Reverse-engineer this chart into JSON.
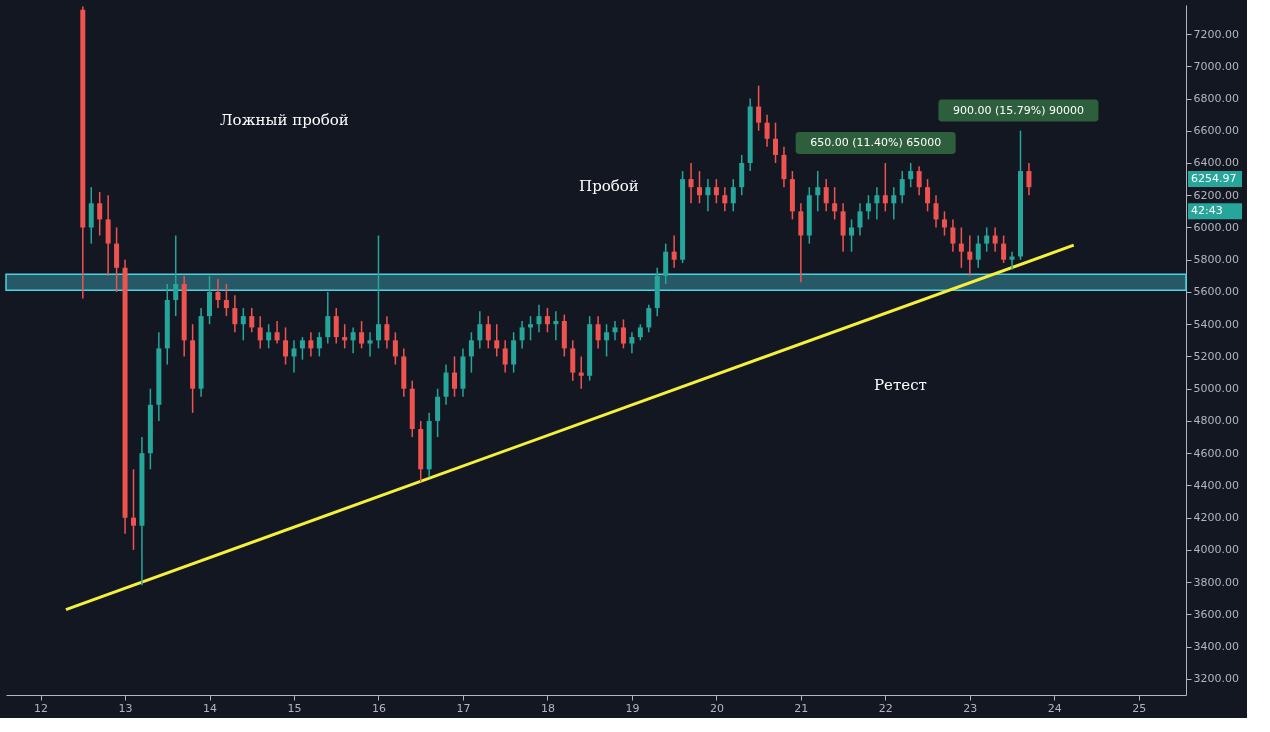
{
  "chart_data": {
    "type": "candlestick",
    "x": [
      12.5,
      12.6,
      12.7,
      12.8,
      12.9,
      13.0,
      13.1,
      13.2,
      13.3,
      13.4,
      13.5,
      13.6,
      13.7,
      13.8,
      13.9,
      14.0,
      14.1,
      14.2,
      14.3,
      14.4,
      14.5,
      14.6,
      14.7,
      14.8,
      14.9,
      15.0,
      15.1,
      15.2,
      15.3,
      15.4,
      15.5,
      15.6,
      15.7,
      15.8,
      15.9,
      16.0,
      16.1,
      16.2,
      16.3,
      16.4,
      16.5,
      16.6,
      16.7,
      16.8,
      16.9,
      17.0,
      17.1,
      17.2,
      17.3,
      17.4,
      17.5,
      17.6,
      17.7,
      17.8,
      17.9,
      18.0,
      18.1,
      18.2,
      18.3,
      18.4,
      18.5,
      18.6,
      18.7,
      18.8,
      18.9,
      19.0,
      19.1,
      19.2,
      19.3,
      19.4,
      19.5,
      19.6,
      19.7,
      19.8,
      19.9,
      20.0,
      20.1,
      20.2,
      20.3,
      20.4,
      20.5,
      20.6,
      20.7,
      20.8,
      20.9,
      21.0,
      21.1,
      21.2,
      21.3,
      21.4,
      21.5,
      21.6,
      21.7,
      21.8,
      21.9,
      22.0,
      22.1,
      22.2,
      22.3,
      22.4,
      22.5,
      22.6,
      22.7,
      22.8,
      22.9,
      23.0,
      23.1,
      23.2,
      23.3,
      23.4,
      23.5,
      23.6,
      23.7
    ],
    "ohlc": [
      [
        7350,
        7370,
        5560,
        6000
      ],
      [
        6000,
        6250,
        5900,
        6150
      ],
      [
        6150,
        6220,
        5950,
        6050
      ],
      [
        6050,
        6200,
        5700,
        5900
      ],
      [
        5900,
        6000,
        5600,
        5750
      ],
      [
        5750,
        5800,
        4100,
        4200
      ],
      [
        4200,
        4500,
        4000,
        4150
      ],
      [
        4150,
        4700,
        3780,
        4600
      ],
      [
        4600,
        5000,
        4500,
        4900
      ],
      [
        4900,
        5350,
        4800,
        5250
      ],
      [
        5250,
        5650,
        5150,
        5550
      ],
      [
        5550,
        5950,
        5450,
        5650
      ],
      [
        5650,
        5700,
        5200,
        5300
      ],
      [
        5300,
        5400,
        4850,
        5000
      ],
      [
        5000,
        5500,
        4950,
        5450
      ],
      [
        5450,
        5700,
        5400,
        5600
      ],
      [
        5600,
        5680,
        5500,
        5550
      ],
      [
        5550,
        5650,
        5450,
        5500
      ],
      [
        5500,
        5580,
        5350,
        5400
      ],
      [
        5400,
        5500,
        5300,
        5450
      ],
      [
        5450,
        5500,
        5350,
        5380
      ],
      [
        5380,
        5450,
        5250,
        5300
      ],
      [
        5300,
        5400,
        5250,
        5350
      ],
      [
        5350,
        5420,
        5280,
        5300
      ],
      [
        5300,
        5380,
        5150,
        5200
      ],
      [
        5200,
        5300,
        5100,
        5250
      ],
      [
        5250,
        5320,
        5180,
        5300
      ],
      [
        5300,
        5350,
        5200,
        5250
      ],
      [
        5250,
        5350,
        5200,
        5320
      ],
      [
        5320,
        5600,
        5280,
        5450
      ],
      [
        5450,
        5500,
        5280,
        5320
      ],
      [
        5320,
        5400,
        5250,
        5300
      ],
      [
        5300,
        5380,
        5220,
        5350
      ],
      [
        5350,
        5420,
        5250,
        5280
      ],
      [
        5280,
        5350,
        5200,
        5300
      ],
      [
        5300,
        5950,
        5250,
        5400
      ],
      [
        5400,
        5450,
        5250,
        5300
      ],
      [
        5300,
        5350,
        5150,
        5200
      ],
      [
        5200,
        5250,
        4950,
        5000
      ],
      [
        5000,
        5050,
        4700,
        4750
      ],
      [
        4750,
        4800,
        4420,
        4500
      ],
      [
        4500,
        4850,
        4450,
        4800
      ],
      [
        4800,
        5000,
        4700,
        4950
      ],
      [
        4950,
        5150,
        4900,
        5100
      ],
      [
        5100,
        5200,
        4950,
        5000
      ],
      [
        5000,
        5250,
        4950,
        5200
      ],
      [
        5200,
        5350,
        5100,
        5300
      ],
      [
        5300,
        5480,
        5250,
        5400
      ],
      [
        5400,
        5450,
        5250,
        5300
      ],
      [
        5300,
        5400,
        5200,
        5250
      ],
      [
        5250,
        5300,
        5100,
        5150
      ],
      [
        5150,
        5350,
        5100,
        5300
      ],
      [
        5300,
        5420,
        5250,
        5380
      ],
      [
        5380,
        5450,
        5300,
        5400
      ],
      [
        5400,
        5520,
        5350,
        5450
      ],
      [
        5450,
        5500,
        5350,
        5400
      ],
      [
        5400,
        5480,
        5300,
        5420
      ],
      [
        5420,
        5460,
        5200,
        5250
      ],
      [
        5250,
        5300,
        5050,
        5100
      ],
      [
        5100,
        5200,
        5000,
        5080
      ],
      [
        5080,
        5450,
        5050,
        5400
      ],
      [
        5400,
        5450,
        5250,
        5300
      ],
      [
        5300,
        5400,
        5200,
        5350
      ],
      [
        5350,
        5420,
        5300,
        5380
      ],
      [
        5380,
        5430,
        5250,
        5280
      ],
      [
        5280,
        5350,
        5220,
        5320
      ],
      [
        5320,
        5400,
        5300,
        5380
      ],
      [
        5380,
        5520,
        5350,
        5500
      ],
      [
        5500,
        5750,
        5450,
        5700
      ],
      [
        5700,
        5900,
        5650,
        5850
      ],
      [
        5850,
        5950,
        5750,
        5800
      ],
      [
        5800,
        6350,
        5780,
        6300
      ],
      [
        6300,
        6400,
        6150,
        6250
      ],
      [
        6250,
        6350,
        6150,
        6200
      ],
      [
        6200,
        6300,
        6100,
        6250
      ],
      [
        6250,
        6300,
        6150,
        6200
      ],
      [
        6200,
        6250,
        6100,
        6150
      ],
      [
        6150,
        6300,
        6100,
        6250
      ],
      [
        6250,
        6450,
        6200,
        6400
      ],
      [
        6400,
        6800,
        6350,
        6750
      ],
      [
        6750,
        6880,
        6600,
        6650
      ],
      [
        6650,
        6700,
        6500,
        6550
      ],
      [
        6550,
        6650,
        6400,
        6450
      ],
      [
        6450,
        6500,
        6250,
        6300
      ],
      [
        6300,
        6350,
        6050,
        6100
      ],
      [
        6100,
        6150,
        5660,
        5950
      ],
      [
        5950,
        6250,
        5900,
        6200
      ],
      [
        6200,
        6350,
        6100,
        6250
      ],
      [
        6250,
        6300,
        6100,
        6150
      ],
      [
        6150,
        6250,
        6050,
        6100
      ],
      [
        6100,
        6150,
        5850,
        5950
      ],
      [
        5950,
        6050,
        5850,
        6000
      ],
      [
        6000,
        6150,
        5950,
        6100
      ],
      [
        6100,
        6200,
        6050,
        6150
      ],
      [
        6150,
        6250,
        6050,
        6200
      ],
      [
        6200,
        6400,
        6100,
        6150
      ],
      [
        6150,
        6250,
        6050,
        6200
      ],
      [
        6200,
        6350,
        6150,
        6300
      ],
      [
        6300,
        6400,
        6250,
        6350
      ],
      [
        6350,
        6380,
        6200,
        6250
      ],
      [
        6250,
        6300,
        6100,
        6150
      ],
      [
        6150,
        6200,
        6000,
        6050
      ],
      [
        6050,
        6100,
        5950,
        6000
      ],
      [
        6000,
        6050,
        5850,
        5900
      ],
      [
        5900,
        6000,
        5750,
        5850
      ],
      [
        5850,
        5950,
        5700,
        5800
      ],
      [
        5800,
        5950,
        5750,
        5900
      ],
      [
        5900,
        6000,
        5850,
        5950
      ],
      [
        5950,
        6000,
        5850,
        5900
      ],
      [
        5900,
        5950,
        5780,
        5800
      ],
      [
        5800,
        5850,
        5740,
        5820
      ],
      [
        5820,
        6600,
        5800,
        6350
      ],
      [
        6350,
        6400,
        6200,
        6250
      ]
    ],
    "series": [
      {
        "type": "line",
        "color": "#f5f03a",
        "x": [
          12.3,
          24.23
        ],
        "values": [
          3630,
          5890
        ]
      }
    ],
    "bands": [
      {
        "axis": "y",
        "from": 5610,
        "to": 5710,
        "color": "#4dd0e1"
      }
    ],
    "annotations": [
      "Ложный пробой",
      "Пробой",
      "Ретест",
      "650.00 (11.40%) 65000",
      "900.00 (15.79%) 90000",
      "6254.97",
      "42:43"
    ],
    "xlim": [
      11.65,
      25.5
    ],
    "xticks": [
      12,
      13,
      14,
      15,
      16,
      17,
      18,
      19,
      20,
      21,
      22,
      23,
      24,
      25
    ],
    "ylim": [
      3100,
      7380
    ],
    "yticks": [
      {
        "value": 3200,
        "label": "3200.00"
      },
      {
        "value": 3400,
        "label": "3400.00"
      },
      {
        "value": 3600,
        "label": "3600.00"
      },
      {
        "value": 3800,
        "label": "3800.00"
      },
      {
        "value": 4000,
        "label": "4000.00"
      },
      {
        "value": 4200,
        "label": "4200.00"
      },
      {
        "value": 4400,
        "label": "4400.00"
      },
      {
        "value": 4600,
        "label": "4600.00"
      },
      {
        "value": 4800,
        "label": "4800.00"
      },
      {
        "value": 5000,
        "label": "5000.00"
      },
      {
        "value": 5200,
        "label": "5200.00"
      },
      {
        "value": 5400,
        "label": "5400.00"
      },
      {
        "value": 5600,
        "label": "5600.00"
      },
      {
        "value": 5800,
        "label": "5800.00"
      },
      {
        "value": 6000,
        "label": "6000.00"
      },
      {
        "value": 6200,
        "label": "6200.00"
      },
      {
        "value": 6400,
        "label": "6400.00"
      },
      {
        "value": 6600,
        "label": "6600.00"
      },
      {
        "value": 6800,
        "label": "6800.00"
      },
      {
        "value": 7000,
        "label": "7000.00"
      },
      {
        "value": 7200,
        "label": "7200.00"
      }
    ],
    "grid": false
  }
}
